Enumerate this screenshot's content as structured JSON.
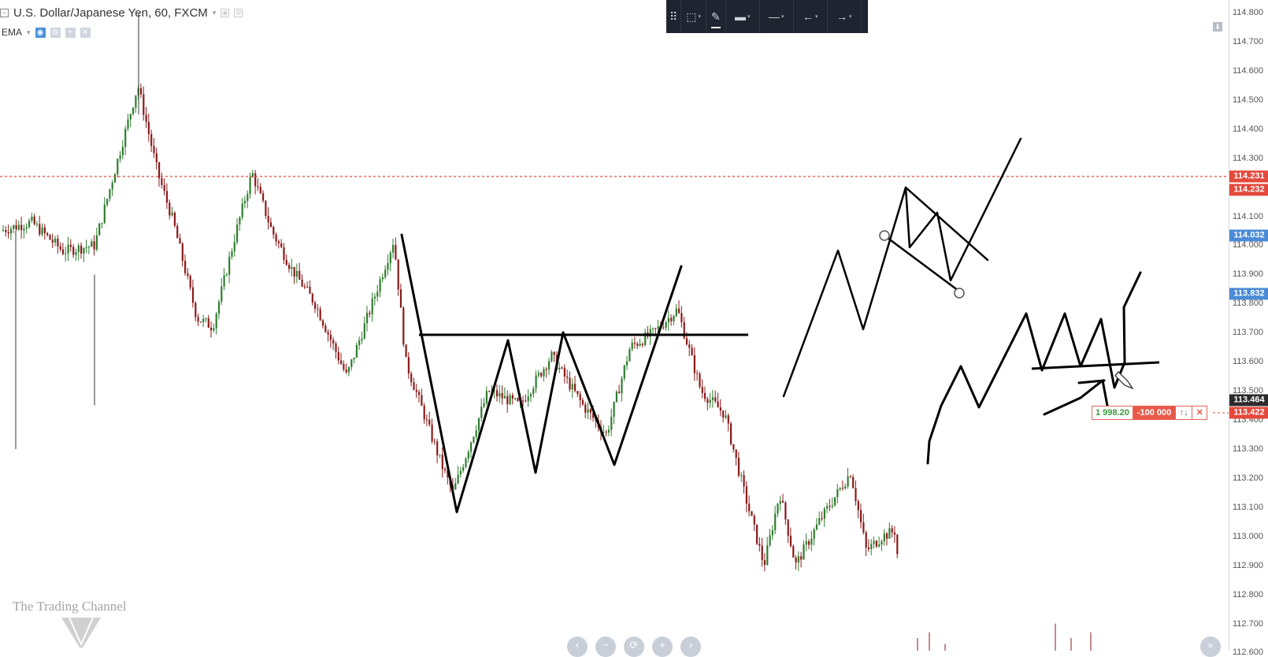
{
  "header": {
    "symbol_title": "U.S. Dollar/Japanese Yen, 60, FXCM",
    "indicator_name": "EMA"
  },
  "price_axis": {
    "ticks": [
      "114.800",
      "114.700",
      "114.600",
      "114.500",
      "114.400",
      "114.300",
      "114.100",
      "114.000",
      "113.900",
      "113.800",
      "113.700",
      "113.600",
      "113.500",
      "113.400",
      "113.300",
      "113.200",
      "113.100",
      "113.000",
      "112.900",
      "112.800",
      "112.700",
      "112.600"
    ],
    "tags": [
      {
        "label": "114.231",
        "color": "#e5483c"
      },
      {
        "label": "114.232",
        "color": "#e5483c"
      },
      {
        "label": "114.032",
        "color": "#4a8ad6"
      },
      {
        "label": "113.832",
        "color": "#4a8ad6"
      },
      {
        "label": "113.464",
        "color": "#2b2b2b"
      },
      {
        "label": "113.422",
        "color": "#e5483c"
      }
    ]
  },
  "order": {
    "quantity_label": "1 998.20",
    "size_label": "-100 000",
    "reverse_label": "↑↓",
    "close_label": "✕"
  },
  "watermark": {
    "text": "The Trading Channel"
  },
  "toolbar": {
    "items": [
      {
        "name": "drag-handle-icon",
        "glyph": "⠿"
      },
      {
        "name": "selection-tool-icon",
        "glyph": "⬚"
      },
      {
        "name": "pen-tool-icon",
        "glyph": "✎"
      },
      {
        "name": "line-width-icon",
        "glyph": "▬"
      },
      {
        "name": "line-style-icon",
        "glyph": "—"
      },
      {
        "name": "line-start-icon",
        "glyph": "←"
      },
      {
        "name": "line-end-icon",
        "glyph": "→"
      }
    ]
  },
  "nav_controls": [
    "‹",
    "−",
    "⟳",
    "+",
    "›"
  ],
  "scroll_right_label": "»",
  "colors": {
    "bull_candle": "#2f7d2f",
    "bear_candle": "#8b1a1a",
    "current_price_line": "#e5483c",
    "drawing": "#000000"
  }
}
